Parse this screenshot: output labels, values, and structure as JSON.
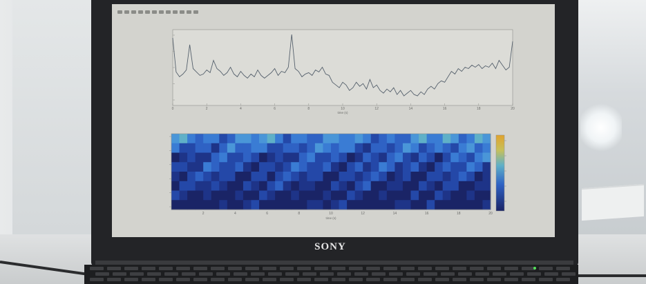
{
  "laptop": {
    "brand": "SONY"
  },
  "colors": {
    "screen_bg": "#d3d3ce",
    "trace": "#55606c",
    "heatmap_low": "#1b2a78",
    "heatmap_mid": "#2e74c8",
    "heatmap_high": "#e0a32e"
  },
  "chart_data": [
    {
      "type": "line",
      "xlabel": "time (s)",
      "xlim": [
        0,
        20
      ],
      "x_ticks": [
        "0",
        "2",
        "4",
        "6",
        "8",
        "10",
        "12",
        "14",
        "16",
        "18",
        "20"
      ],
      "y_tick_count": 5,
      "series": [
        {
          "x": [
            0,
            0.2,
            0.4,
            0.6,
            0.8,
            1.0,
            1.2,
            1.4,
            1.6,
            1.8,
            2.0,
            2.2,
            2.4,
            2.6,
            2.8,
            3.0,
            3.2,
            3.4,
            3.6,
            3.8,
            4.0,
            4.2,
            4.4,
            4.6,
            4.8,
            5.0,
            5.2,
            5.4,
            5.6,
            5.8,
            6.0,
            6.2,
            6.4,
            6.6,
            6.8,
            7.0,
            7.2,
            7.4,
            7.6,
            7.8,
            8.0,
            8.2,
            8.4,
            8.6,
            8.8,
            9.0,
            9.2,
            9.4,
            9.6,
            9.8,
            10.0,
            10.2,
            10.4,
            10.6,
            10.8,
            11.0,
            11.2,
            11.4,
            11.6,
            11.8,
            12.0,
            12.2,
            12.4,
            12.6,
            12.8,
            13.0,
            13.2,
            13.4,
            13.6,
            13.8,
            14.0,
            14.2,
            14.4,
            14.6,
            14.8,
            15.0,
            15.2,
            15.4,
            15.6,
            15.8,
            16.0,
            16.2,
            16.4,
            16.6,
            16.8,
            17.0,
            17.2,
            17.4,
            17.6,
            17.8,
            18.0,
            18.2,
            18.4,
            18.6,
            18.8,
            19.0,
            19.2,
            19.4,
            19.6,
            19.8,
            20.0
          ],
          "values": [
            0.95,
            0.45,
            0.38,
            0.42,
            0.48,
            0.85,
            0.5,
            0.45,
            0.4,
            0.42,
            0.48,
            0.44,
            0.62,
            0.5,
            0.46,
            0.4,
            0.44,
            0.52,
            0.42,
            0.38,
            0.46,
            0.4,
            0.36,
            0.42,
            0.38,
            0.48,
            0.4,
            0.36,
            0.4,
            0.44,
            0.5,
            0.4,
            0.46,
            0.44,
            0.52,
            1.0,
            0.5,
            0.46,
            0.38,
            0.42,
            0.44,
            0.4,
            0.48,
            0.45,
            0.52,
            0.42,
            0.4,
            0.3,
            0.26,
            0.22,
            0.3,
            0.26,
            0.18,
            0.22,
            0.3,
            0.24,
            0.28,
            0.2,
            0.34,
            0.22,
            0.26,
            0.18,
            0.14,
            0.2,
            0.16,
            0.22,
            0.12,
            0.18,
            0.1,
            0.14,
            0.18,
            0.12,
            0.1,
            0.16,
            0.12,
            0.2,
            0.24,
            0.2,
            0.28,
            0.32,
            0.3,
            0.38,
            0.46,
            0.42,
            0.5,
            0.46,
            0.52,
            0.5,
            0.55,
            0.52,
            0.56,
            0.5,
            0.54,
            0.52,
            0.58,
            0.5,
            0.62,
            0.55,
            0.48,
            0.52,
            0.9
          ]
        }
      ]
    },
    {
      "type": "heatmap",
      "xlabel": "time (s)",
      "xlim": [
        0,
        20
      ],
      "x_ticks": [
        "2",
        "4",
        "6",
        "8",
        "10",
        "12",
        "14",
        "16",
        "18",
        "20"
      ],
      "rows": 8,
      "columns": 40,
      "colorbar": true,
      "colorbar_tick_count": 5
    }
  ]
}
